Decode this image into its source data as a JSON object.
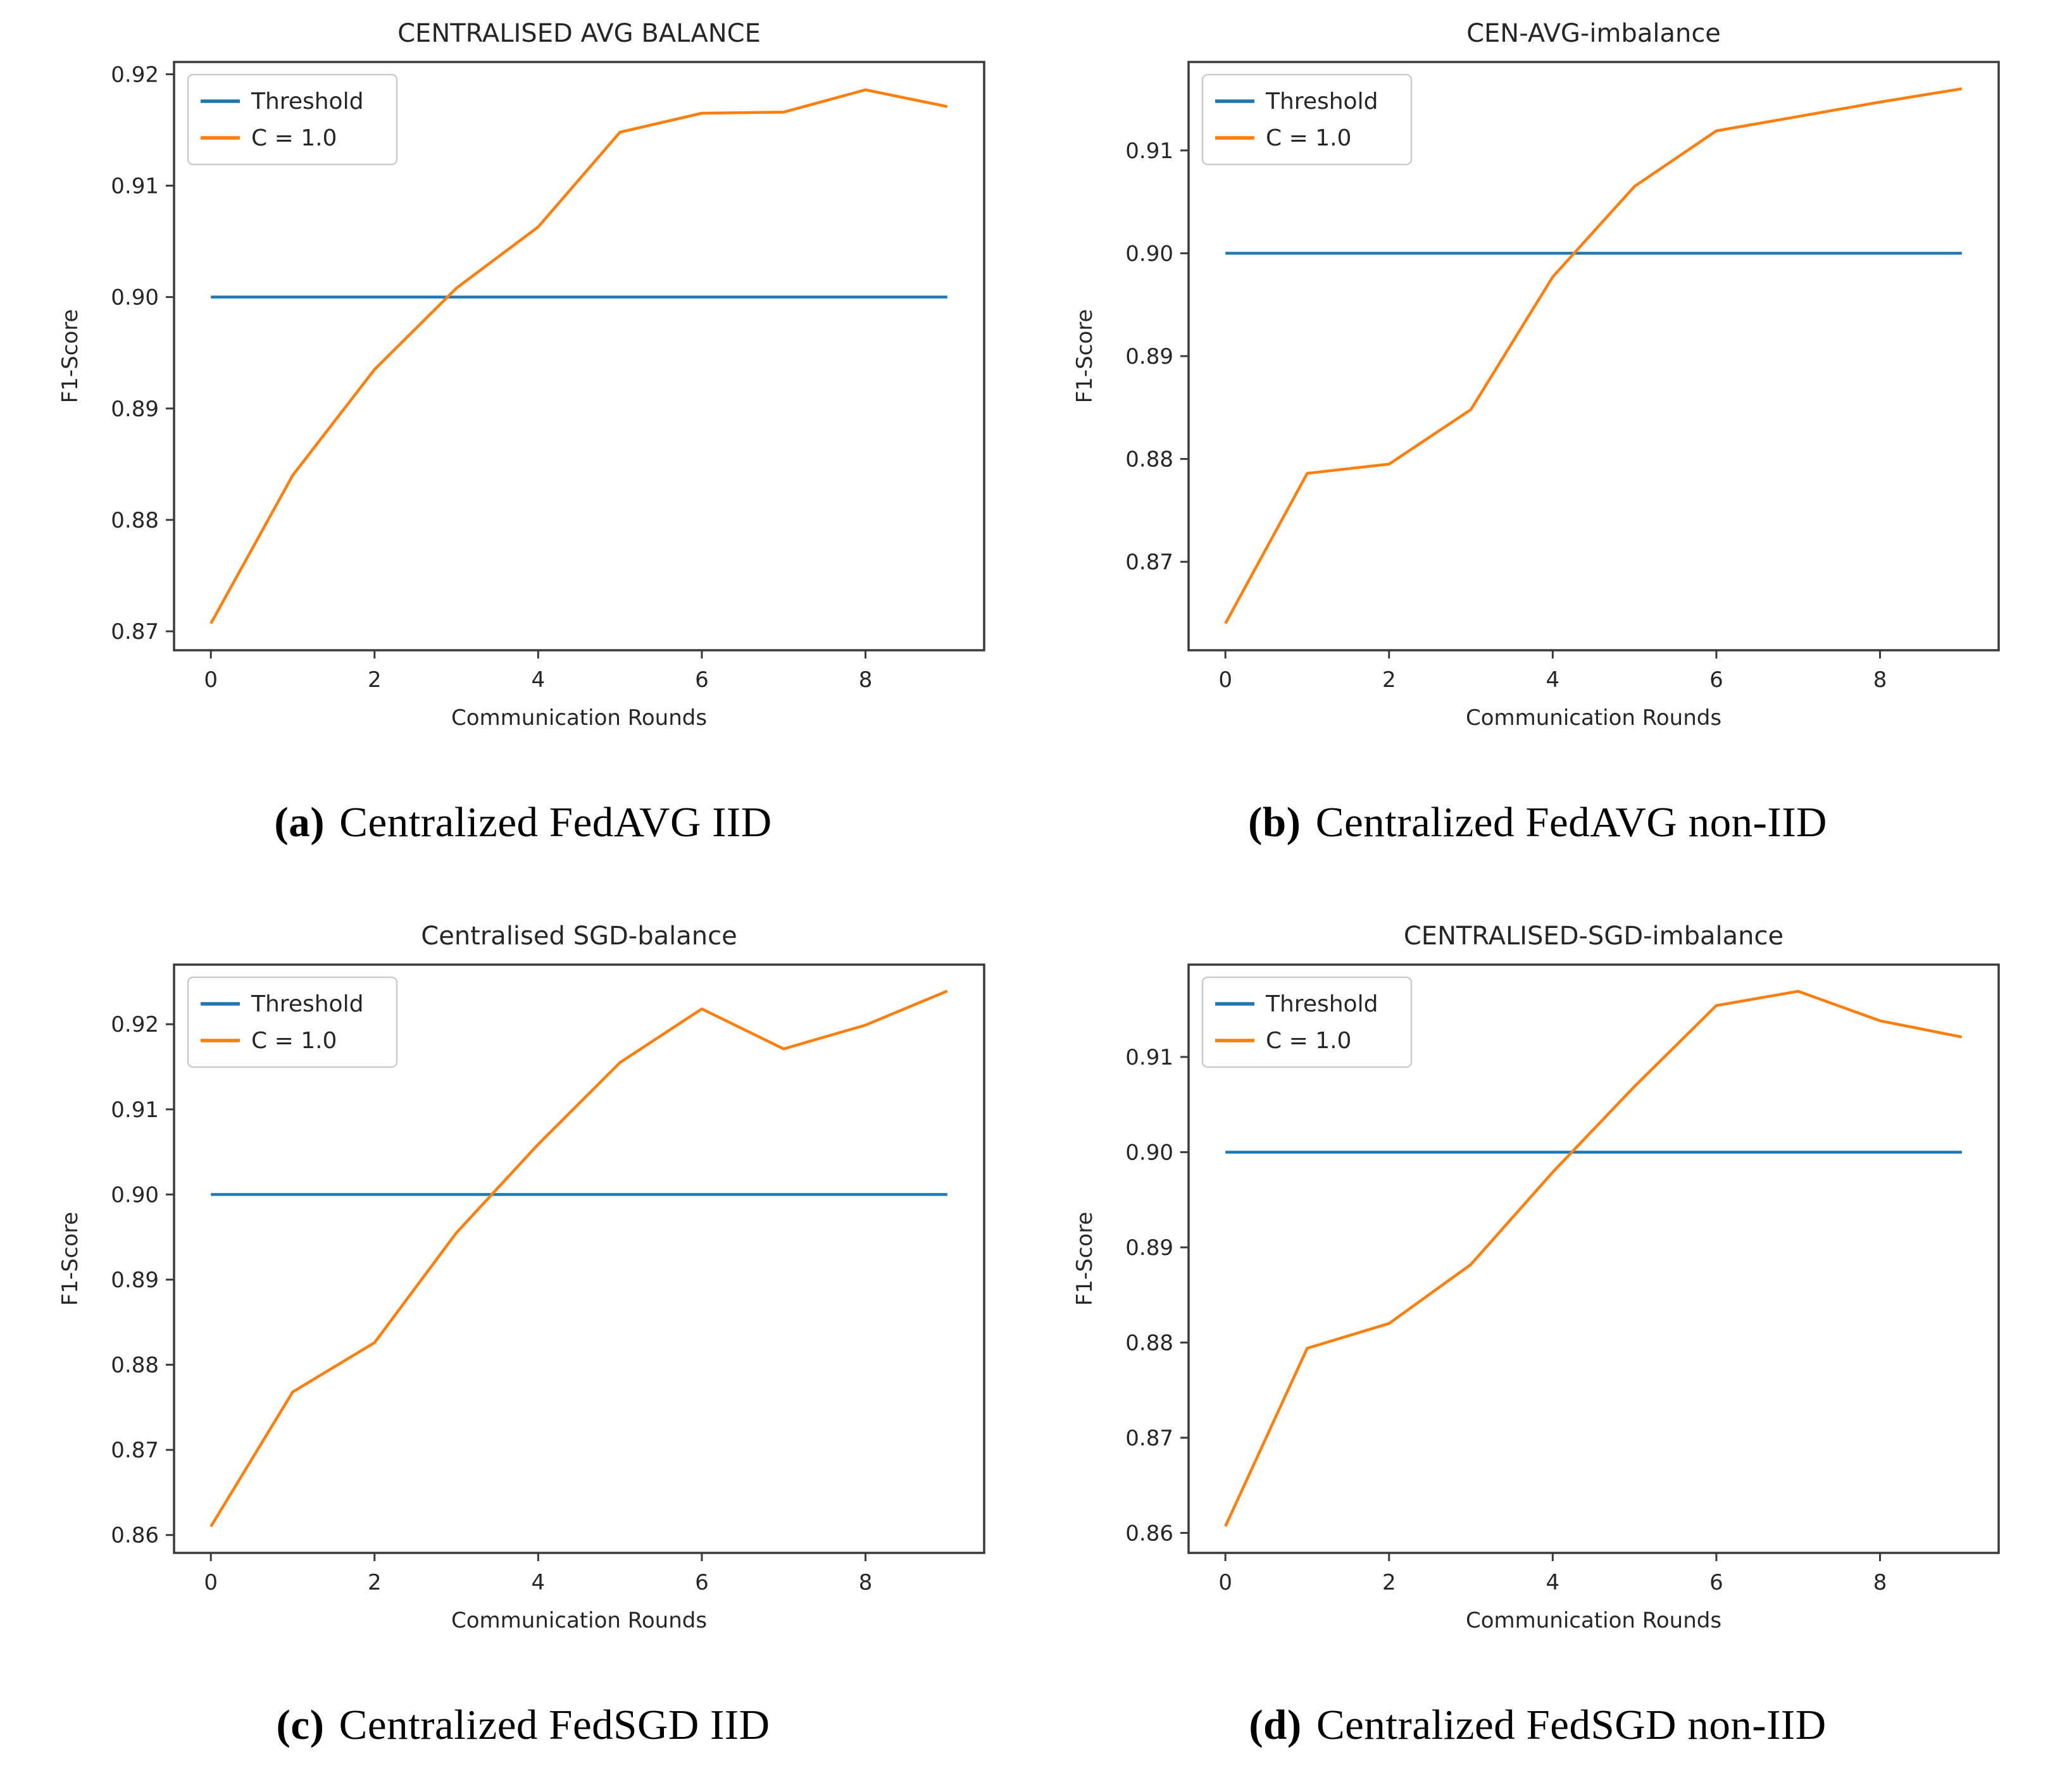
{
  "page": {
    "background": "#ffffff"
  },
  "colors": {
    "threshold": "#1f77b4",
    "series": "#ff7f0e",
    "spine": "#3a3a3a",
    "text": "#262626",
    "legend_border": "#cccccc",
    "legend_bg": "#ffffff"
  },
  "chart_data": [
    {
      "id": "a",
      "type": "line",
      "title": "CENTRALISED AVG BALANCE",
      "xlabel": "Communication Rounds",
      "ylabel": "F1-Score",
      "x": [
        0,
        1,
        2,
        3,
        4,
        5,
        6,
        7,
        8,
        9
      ],
      "xticks": [
        0,
        2,
        4,
        6,
        8
      ],
      "yticks": [
        0.87,
        0.88,
        0.89,
        0.9,
        0.91,
        0.92
      ],
      "xlim": [
        -0.45,
        9.45
      ],
      "ylim": [
        0.8683,
        0.9211
      ],
      "grid": false,
      "legend_position": "upper left",
      "series": [
        {
          "name": "Threshold",
          "color": "#1f77b4",
          "values": [
            0.9,
            0.9,
            0.9,
            0.9,
            0.9,
            0.9,
            0.9,
            0.9,
            0.9,
            0.9
          ]
        },
        {
          "name": "C = 1.0",
          "color": "#ff7f0e",
          "values": [
            0.8707,
            0.884,
            0.8935,
            0.9008,
            0.9063,
            0.9148,
            0.9165,
            0.9166,
            0.9186,
            0.9171
          ]
        }
      ],
      "caption_prefix": "(a)",
      "caption": "Centralized FedAVG IID"
    },
    {
      "id": "b",
      "type": "line",
      "title": "CEN-AVG-imbalance",
      "xlabel": "Communication Rounds",
      "ylabel": "F1-Score",
      "x": [
        0,
        1,
        2,
        3,
        4,
        5,
        6,
        7,
        8,
        9
      ],
      "xticks": [
        0,
        2,
        4,
        6,
        8
      ],
      "yticks": [
        0.87,
        0.88,
        0.89,
        0.9,
        0.91
      ],
      "xlim": [
        -0.45,
        9.45
      ],
      "ylim": [
        0.8614,
        0.9186
      ],
      "grid": false,
      "legend_position": "upper left",
      "series": [
        {
          "name": "Threshold",
          "color": "#1f77b4",
          "values": [
            0.9,
            0.9,
            0.9,
            0.9,
            0.9,
            0.9,
            0.9,
            0.9,
            0.9,
            0.9
          ]
        },
        {
          "name": "C = 1.0",
          "color": "#ff7f0e",
          "values": [
            0.864,
            0.8786,
            0.8795,
            0.8848,
            0.8977,
            0.9065,
            0.9119,
            0.9133,
            0.9147,
            0.916
          ]
        }
      ],
      "caption_prefix": "(b)",
      "caption": "Centralized FedAVG non-IID"
    },
    {
      "id": "c",
      "type": "line",
      "title": "Centralised SGD-balance",
      "xlabel": "Communication Rounds",
      "ylabel": "F1-Score",
      "x": [
        0,
        1,
        2,
        3,
        4,
        5,
        6,
        7,
        8,
        9
      ],
      "xticks": [
        0,
        2,
        4,
        6,
        8
      ],
      "yticks": [
        0.86,
        0.87,
        0.88,
        0.89,
        0.9,
        0.91,
        0.92
      ],
      "xlim": [
        -0.45,
        9.45
      ],
      "ylim": [
        0.8579,
        0.927
      ],
      "grid": false,
      "legend_position": "upper left",
      "series": [
        {
          "name": "Threshold",
          "color": "#1f77b4",
          "values": [
            0.9,
            0.9,
            0.9,
            0.9,
            0.9,
            0.9,
            0.9,
            0.9,
            0.9,
            0.9
          ]
        },
        {
          "name": "C = 1.0",
          "color": "#ff7f0e",
          "values": [
            0.861,
            0.8768,
            0.8826,
            0.8955,
            0.9059,
            0.9155,
            0.9218,
            0.9171,
            0.9199,
            0.9239
          ]
        }
      ],
      "caption_prefix": "(c)",
      "caption": "Centralized FedSGD IID"
    },
    {
      "id": "d",
      "type": "line",
      "title": "CENTRALISED-SGD-imbalance",
      "xlabel": "Communication Rounds",
      "ylabel": "F1-Score",
      "x": [
        0,
        1,
        2,
        3,
        4,
        5,
        6,
        7,
        8,
        9
      ],
      "xticks": [
        0,
        2,
        4,
        6,
        8
      ],
      "yticks": [
        0.86,
        0.87,
        0.88,
        0.89,
        0.9,
        0.91
      ],
      "xlim": [
        -0.45,
        9.45
      ],
      "ylim": [
        0.8579,
        0.9197
      ],
      "grid": false,
      "legend_position": "upper left",
      "series": [
        {
          "name": "Threshold",
          "color": "#1f77b4",
          "values": [
            0.9,
            0.9,
            0.9,
            0.9,
            0.9,
            0.9,
            0.9,
            0.9,
            0.9,
            0.9
          ]
        },
        {
          "name": "C = 1.0",
          "color": "#ff7f0e",
          "values": [
            0.8607,
            0.8794,
            0.882,
            0.8882,
            0.8979,
            0.9069,
            0.9154,
            0.9169,
            0.9138,
            0.9121
          ]
        }
      ],
      "caption_prefix": "(d)",
      "caption": "Centralized FedSGD non-IID"
    }
  ]
}
